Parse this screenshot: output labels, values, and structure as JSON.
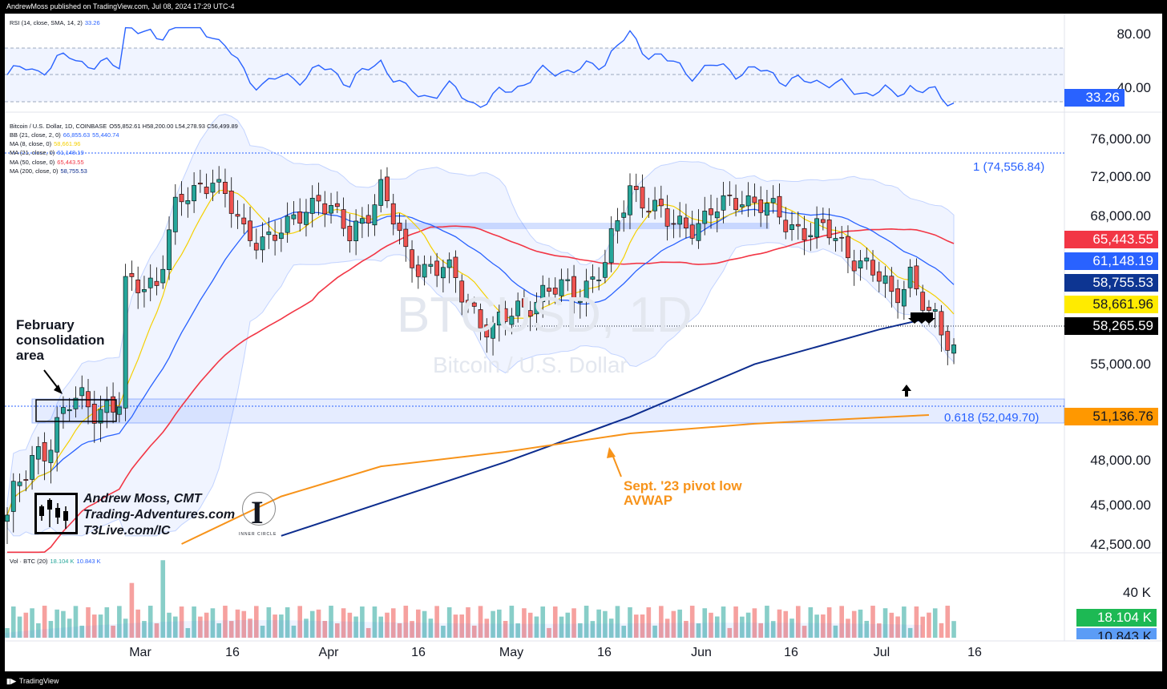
{
  "header": {
    "published": "AndrewMoss published on TradingView.com, Jul 08, 2024 17:29 UTC-4"
  },
  "rsi": {
    "legend": "RSI (14, close, SMA, 14, 2)",
    "value": "33.26",
    "axis_labels": [
      "80.00",
      "40.00"
    ],
    "badge": "33.26"
  },
  "main_legend": {
    "symbol": "Bitcoin / U.S. Dollar, 1D, COINBASE",
    "ohlc": "O55,852.61  H58,200.00  L54,278.93  C56,499.89",
    "bb": {
      "label": "BB (21, close, 2, 0)",
      "v1": "66,855.63",
      "v2": "55,440.74"
    },
    "ma8": {
      "label": "MA (8, close, 0)",
      "v": "58,661.96"
    },
    "ma21": {
      "label": "MA (21, close, 0)",
      "v": "61,148.19"
    },
    "ma50": {
      "label": "MA (50, close, 0)",
      "v": "65,443.55"
    },
    "ma200": {
      "label": "MA (200, close, 0)",
      "v": "58,755.53"
    }
  },
  "watermark": {
    "ticker": "BTCUSD, 1D",
    "name": "Bitcoin / U.S. Dollar"
  },
  "price_axis": [
    "76,000.00",
    "72,000.00",
    "68,000.00",
    "55,000.00",
    "48,000.00",
    "45,000.00",
    "42,500.00"
  ],
  "badges": [
    {
      "text": "65,443.55",
      "bg": "#f23645",
      "fg": "#ffffff"
    },
    {
      "text": "61,148.19",
      "bg": "#2962ff",
      "fg": "#ffffff"
    },
    {
      "text": "58,755.53",
      "bg": "#0d3592",
      "fg": "#ffffff"
    },
    {
      "text": "58,661.96",
      "bg": "#ffeb00",
      "fg": "#131722"
    },
    {
      "text": "58,265.59",
      "bg": "#000000",
      "fg": "#ffffff"
    },
    {
      "text": "51,136.76",
      "bg": "#ff9800",
      "fg": "#131722"
    }
  ],
  "fib": {
    "level1": "1 (74,556.84)",
    "level618": "0.618 (52,049.70)"
  },
  "volume": {
    "legend": "Vol · BTC (20)",
    "v1": "18.104 K",
    "v2": "10.843 K",
    "axis": "40 K",
    "badge1": "18.104 K",
    "badge2": "10.843 K"
  },
  "date_axis": [
    "Mar",
    "16",
    "Apr",
    "16",
    "May",
    "16",
    "Jun",
    "16",
    "Jul",
    "16"
  ],
  "annotations": {
    "feb": [
      "February",
      "consolidation",
      "area"
    ],
    "avwap": [
      "Sept. '23 pivot low",
      "AVWAP"
    ]
  },
  "branding": {
    "lines": [
      "Andrew Moss, CMT",
      "Trading-Adventures.com",
      "T3Live.com/IC"
    ],
    "ic": "INNER CIRCLE",
    "footer": "TradingView"
  },
  "colors": {
    "up": "#26a69a",
    "down": "#ef5350",
    "ma8": "#f5d000",
    "ma21": "#2962ff",
    "ma50": "#f23645",
    "ma200": "#0d2d8e",
    "avwap": "#f7931a"
  },
  "chart_data": {
    "type": "candlestick",
    "title": "Bitcoin / U.S. Dollar, 1D, COINBASE",
    "ylim": [
      42000,
      76500
    ],
    "x": [
      "2024-02-15",
      "2024-03-01",
      "2024-03-16",
      "2024-04-01",
      "2024-04-16",
      "2024-05-01",
      "2024-05-16",
      "2024-06-01",
      "2024-06-16",
      "2024-07-01",
      "2024-07-08"
    ],
    "close_approx": [
      51800,
      61200,
      68400,
      69600,
      63800,
      57500,
      65200,
      67800,
      66300,
      62700,
      56500
    ],
    "series": [
      {
        "name": "MA (8, close, 0)",
        "last": 58661.96
      },
      {
        "name": "MA (21, close, 0)",
        "last": 61148.19
      },
      {
        "name": "MA (50, close, 0)",
        "last": 65443.55
      },
      {
        "name": "MA (200, close, 0)",
        "last": 58755.53
      },
      {
        "name": "AVWAP",
        "last": 51136.76
      }
    ],
    "rsi_last": 33.26
  }
}
